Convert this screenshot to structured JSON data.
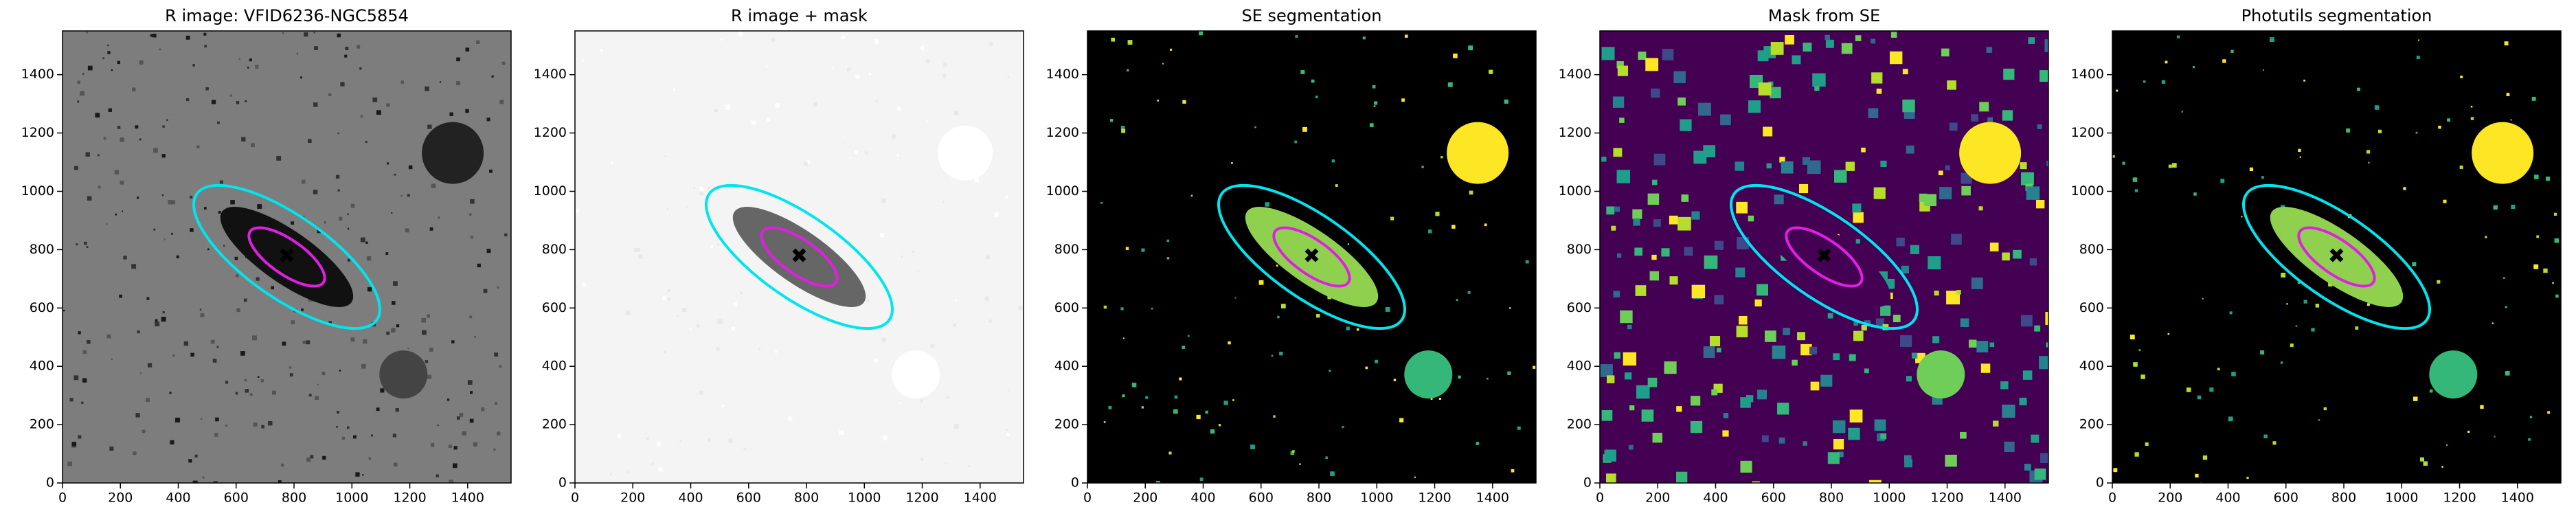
{
  "chart_data": [
    {
      "type": "image",
      "title": "R image: VFID6236-NGC5854",
      "cmap": "gray",
      "xlim": [
        0,
        1550
      ],
      "ylim": [
        0,
        1550
      ],
      "xticks": [
        0,
        200,
        400,
        600,
        800,
        1000,
        1200,
        1400
      ],
      "yticks": [
        0,
        200,
        400,
        600,
        800,
        1000,
        1200,
        1400
      ]
    },
    {
      "type": "image",
      "title": "R image + mask",
      "cmap": "gray_r",
      "xlim": [
        0,
        1550
      ],
      "ylim": [
        0,
        1550
      ],
      "xticks": [
        0,
        200,
        400,
        600,
        800,
        1000,
        1200,
        1400
      ],
      "yticks": [
        0,
        200,
        400,
        600,
        800,
        1000,
        1200,
        1400
      ]
    },
    {
      "type": "image",
      "title": "SE segmentation",
      "cmap": "viridis",
      "xlim": [
        0,
        1550
      ],
      "ylim": [
        0,
        1550
      ],
      "xticks": [
        0,
        200,
        400,
        600,
        800,
        1000,
        1200,
        1400
      ],
      "yticks": [
        0,
        200,
        400,
        600,
        800,
        1000,
        1200,
        1400
      ]
    },
    {
      "type": "image",
      "title": "Mask from SE",
      "cmap": "viridis_full",
      "xlim": [
        0,
        1550
      ],
      "ylim": [
        0,
        1550
      ],
      "xticks": [
        0,
        200,
        400,
        600,
        800,
        1000,
        1200,
        1400
      ],
      "yticks": [
        0,
        200,
        400,
        600,
        800,
        1000,
        1200,
        1400
      ]
    },
    {
      "type": "image",
      "title": "Photutils segmentation",
      "cmap": "viridis",
      "xlim": [
        0,
        1550
      ],
      "ylim": [
        0,
        1550
      ],
      "xticks": [
        0,
        200,
        400,
        600,
        800,
        1000,
        1200,
        1400
      ],
      "yticks": [
        0,
        200,
        400,
        600,
        800,
        1000,
        1200,
        1400
      ]
    }
  ]
}
